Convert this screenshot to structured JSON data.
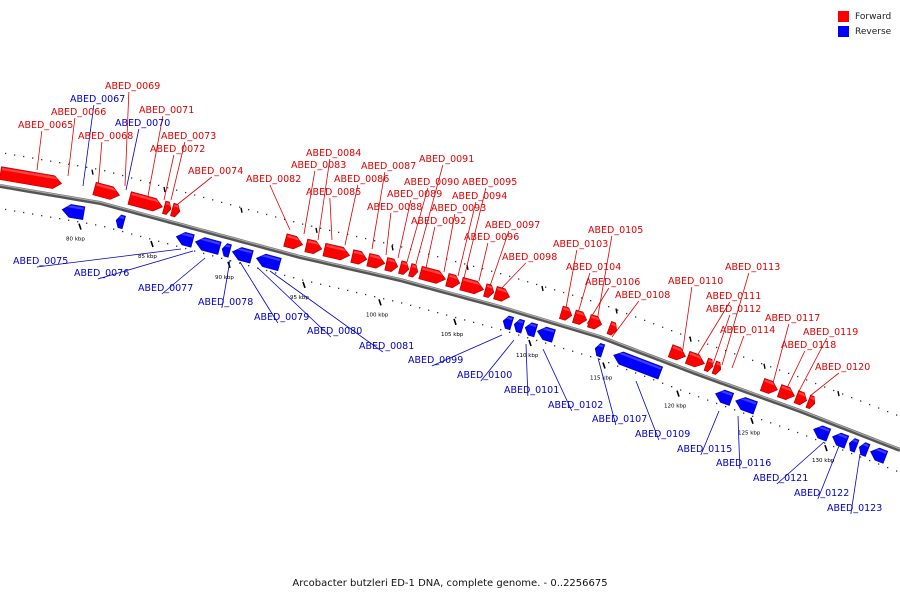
{
  "legend": [
    {
      "label": "Forward",
      "color": "#ff0000"
    },
    {
      "label": "Reverse",
      "color": "#0000ff"
    }
  ],
  "caption": "Arcobacter butzleri ED-1 DNA, complete genome. - 0..2256675",
  "ticks": [
    {
      "label": "80 kbp",
      "kbp": 80
    },
    {
      "label": "85 kbp",
      "kbp": 85
    },
    {
      "label": "90 kbp",
      "kbp": 90
    },
    {
      "label": "95 kbp",
      "kbp": 95
    },
    {
      "label": "100 kbp",
      "kbp": 100
    },
    {
      "label": "105 kbp",
      "kbp": 105
    },
    {
      "label": "110 kbp",
      "kbp": 110
    },
    {
      "label": "115 kbp",
      "kbp": 115
    },
    {
      "label": "120 kbp",
      "kbp": 120
    },
    {
      "label": "125 kbp",
      "kbp": 125
    },
    {
      "label": "130 kbp",
      "kbp": 130
    }
  ],
  "forward_genes": [
    "ABED_0065",
    "ABED_0066",
    "ABED_0068",
    "ABED_0069",
    "ABED_0071",
    "ABED_0072",
    "ABED_0073",
    "ABED_0074",
    "ABED_0082",
    "ABED_0083",
    "ABED_0084",
    "ABED_0085",
    "ABED_0086",
    "ABED_0087",
    "ABED_0088",
    "ABED_0089",
    "ABED_0090",
    "ABED_0091",
    "ABED_0092",
    "ABED_0093",
    "ABED_0094",
    "ABED_0095",
    "ABED_0096",
    "ABED_0097",
    "ABED_0098",
    "ABED_0103",
    "ABED_0104",
    "ABED_0105",
    "ABED_0106",
    "ABED_0108",
    "ABED_0110",
    "ABED_0111",
    "ABED_0112",
    "ABED_0113",
    "ABED_0114",
    "ABED_0117",
    "ABED_0118",
    "ABED_0119",
    "ABED_0120"
  ],
  "reverse_genes": [
    "ABED_0067",
    "ABED_0070",
    "ABED_0075",
    "ABED_0076",
    "ABED_0077",
    "ABED_0078",
    "ABED_0079",
    "ABED_0080",
    "ABED_0081",
    "ABED_0099",
    "ABED_0100",
    "ABED_0101",
    "ABED_0102",
    "ABED_0107",
    "ABED_0109",
    "ABED_0115",
    "ABED_0116",
    "ABED_0121",
    "ABED_0122",
    "ABED_0123"
  ]
}
